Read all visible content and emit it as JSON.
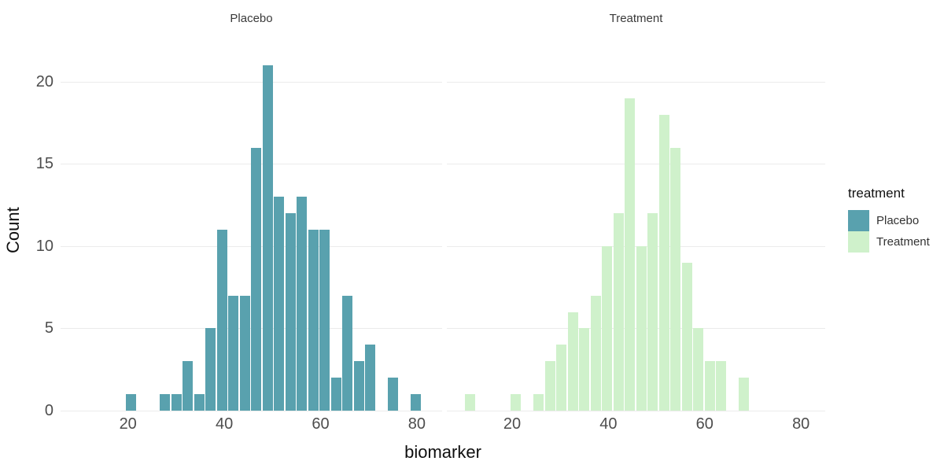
{
  "chart_data": {
    "type": "bar",
    "subtype": "faceted-histogram",
    "title": "",
    "xlabel": "biomarker",
    "ylabel": "Count",
    "x_ticks": [
      20,
      40,
      60,
      80
    ],
    "y_ticks": [
      0,
      5,
      10,
      15,
      20
    ],
    "xlim": [
      6.2,
      85.3
    ],
    "ylim": [
      0,
      22
    ],
    "grid": true,
    "bin_width": 2.37,
    "facets": [
      {
        "label": "Placebo",
        "color": "#59A1AE",
        "bin_start": 19.4,
        "counts": [
          1,
          0,
          0,
          1,
          1,
          3,
          1,
          5,
          11,
          7,
          7,
          16,
          21,
          13,
          12,
          13,
          11,
          11,
          2,
          7,
          3,
          4,
          0,
          2,
          0,
          1
        ]
      },
      {
        "label": "Treatment",
        "color": "#CFF1CB",
        "bin_start": 10.1,
        "counts": [
          1,
          0,
          0,
          0,
          1,
          0,
          1,
          3,
          4,
          6,
          5,
          7,
          10,
          12,
          19,
          10,
          12,
          18,
          16,
          9,
          5,
          3,
          3,
          0,
          2
        ]
      }
    ],
    "legend_title": "treatment",
    "legend_position": "right",
    "legend": [
      {
        "label": "Placebo",
        "color": "#59A1AE"
      },
      {
        "label": "Treatment",
        "color": "#CFF1CB"
      }
    ]
  },
  "colors": {
    "background": "#ffffff",
    "gridline": "#ebebeb",
    "tick_text": "#4d4d4d",
    "axis_title_text": "#0f0f0f",
    "strip_text": "#3a3a3a"
  }
}
